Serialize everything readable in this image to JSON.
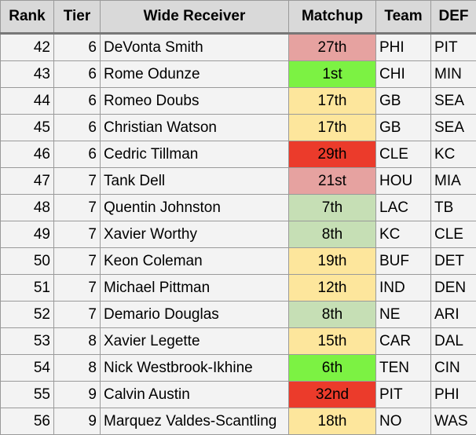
{
  "table": {
    "headers": [
      "Rank",
      "Tier",
      "Wide Receiver",
      "Matchup",
      "Team",
      "DEF"
    ],
    "rows": [
      [
        "42",
        "6",
        "DeVonta Smith",
        "27th",
        "PHI",
        "PIT"
      ],
      [
        "43",
        "6",
        "Rome Odunze",
        "1st",
        "CHI",
        "MIN"
      ],
      [
        "44",
        "6",
        "Romeo Doubs",
        "17th",
        "GB",
        "SEA"
      ],
      [
        "45",
        "6",
        "Christian Watson",
        "17th",
        "GB",
        "SEA"
      ],
      [
        "46",
        "6",
        "Cedric Tillman",
        "29th",
        "CLE",
        "KC"
      ],
      [
        "47",
        "7",
        "Tank Dell",
        "21st",
        "HOU",
        "MIA"
      ],
      [
        "48",
        "7",
        "Quentin Johnston",
        "7th",
        "LAC",
        "TB"
      ],
      [
        "49",
        "7",
        "Xavier Worthy",
        "8th",
        "KC",
        "CLE"
      ],
      [
        "50",
        "7",
        "Keon Coleman",
        "19th",
        "BUF",
        "DET"
      ],
      [
        "51",
        "7",
        "Michael Pittman",
        "12th",
        "IND",
        "DEN"
      ],
      [
        "52",
        "7",
        "Demario Douglas",
        "8th",
        "NE",
        "ARI"
      ],
      [
        "53",
        "8",
        "Xavier Legette",
        "15th",
        "CAR",
        "DAL"
      ],
      [
        "54",
        "8",
        "Nick Westbrook-Ikhine",
        "6th",
        "TEN",
        "CIN"
      ],
      [
        "55",
        "9",
        "Calvin Austin",
        "32nd",
        "PIT",
        "PHI"
      ],
      [
        "56",
        "9",
        "Marquez Valdes-Scantling",
        "18th",
        "NO",
        "WAS"
      ]
    ],
    "matchup_colors": [
      "#e6a2a0",
      "#7cf243",
      "#fde69c",
      "#fde69c",
      "#eb3b2b",
      "#e6a2a0",
      "#c6dfb5",
      "#c6dfb5",
      "#fde69c",
      "#fde69c",
      "#c6dfb5",
      "#fde69c",
      "#7cf243",
      "#eb3b2b",
      "#fde69c"
    ]
  }
}
